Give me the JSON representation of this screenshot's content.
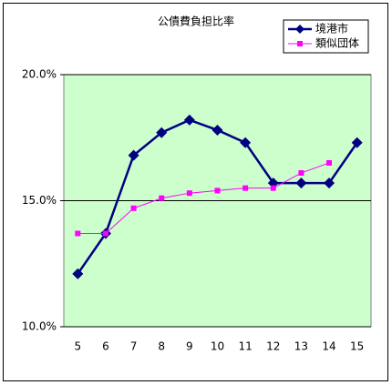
{
  "chart_data": {
    "type": "line",
    "title": "公債費負担比率",
    "categories": [
      "5",
      "6",
      "7",
      "8",
      "9",
      "10",
      "11",
      "12",
      "13",
      "14",
      "15"
    ],
    "series": [
      {
        "name": "境港市",
        "color": "#000080",
        "marker": "diamond",
        "values": [
          12.1,
          13.7,
          16.8,
          17.7,
          18.2,
          17.8,
          17.3,
          15.7,
          15.7,
          15.7,
          17.3
        ]
      },
      {
        "name": "類似団体",
        "color": "#ff00ff",
        "marker": "square",
        "values": [
          13.7,
          13.7,
          14.7,
          15.1,
          15.3,
          15.4,
          15.5,
          15.5,
          16.1,
          16.5,
          null
        ]
      }
    ],
    "ylim": [
      10,
      20
    ],
    "yticks": [
      {
        "value": 10,
        "label": "10.0%"
      },
      {
        "value": 15,
        "label": "15.0%"
      },
      {
        "value": 20,
        "label": "20.0%"
      }
    ],
    "grid": true,
    "plot_background": "#ccffcc",
    "legend": "top-right"
  }
}
